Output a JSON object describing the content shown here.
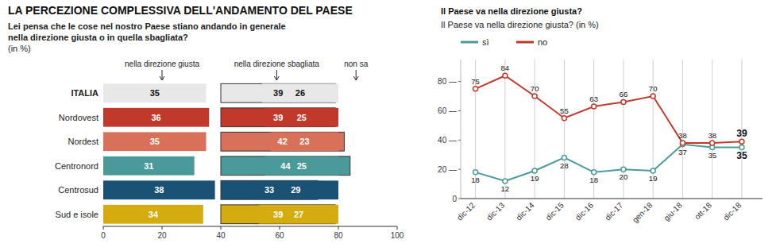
{
  "chart_data": [
    {
      "type": "bar",
      "orientation": "horizontal",
      "stacked": false,
      "data_labels": true,
      "title": "LA PERCEZIONE COMPLESSIVA DELL'ANDAMENTO DEL PAESE",
      "subtitle": "Lei pensa che le cose nel nostro Paese stiano andando in generale\nnella direzione giusta o in quella sbagliata?",
      "annotations": [
        "(in %)"
      ],
      "categories": [
        "ITALIA",
        "Nordovest",
        "Nordest",
        "Centronord",
        "Centrosud",
        "Sud e isole"
      ],
      "series": [
        {
          "name": "nella direzione giusta",
          "values": [
            35,
            36,
            35,
            31,
            38,
            34
          ],
          "colors": [
            "#e8e8e8",
            "#c0392b",
            "#d9715a",
            "#4a9a9a",
            "#1a5276",
            "#d4ac0d"
          ]
        },
        {
          "name": "nella direzione sbagliata",
          "values": [
            39,
            39,
            42,
            44,
            33,
            39
          ],
          "colors": [
            "#e8e8e8",
            "#c0392b",
            "#d9715a",
            "#4a9a9a",
            "#1a5276",
            "#d4ac0d"
          ]
        },
        {
          "name": "non sa",
          "values": [
            26,
            25,
            23,
            25,
            29,
            27
          ],
          "colors": [
            "#e8e8e8",
            "#c0392b",
            "#d9715a",
            "#4a9a9a",
            "#1a5276",
            "#d4ac0d"
          ]
        }
      ],
      "xlim": [
        0,
        100
      ],
      "xticks": [
        0,
        20,
        40,
        60,
        80,
        100
      ]
    },
    {
      "type": "line",
      "data_labels": true,
      "grid": true,
      "legend": "upper left",
      "marker": "circle",
      "title": "Il Paese va nella direzione giusta?",
      "subtitle": "Il Paese va nella direzione giusta? (in %)",
      "categories": [
        "dic-12",
        "dic-13",
        "dic-14",
        "dic-15",
        "dic-16",
        "dic-17",
        "gen-18",
        "giu-18",
        "ott-18",
        "dic-18"
      ],
      "series": [
        {
          "name": "sì",
          "color": "#4a9a9a",
          "values": [
            18,
            12,
            19,
            28,
            18,
            20,
            19,
            37,
            35,
            35
          ]
        },
        {
          "name": "no",
          "color": "#c0392b",
          "values": [
            75,
            84,
            70,
            55,
            63,
            66,
            70,
            38,
            38,
            39
          ]
        }
      ],
      "ylim": [
        0,
        95
      ],
      "yticks": [
        0,
        {
          "value": 20,
          "label": "20 —"
        },
        {
          "value": 40,
          "label": "40 —"
        },
        {
          "value": 60,
          "label": "60 —"
        },
        {
          "value": 80,
          "label": "80 —"
        }
      ]
    }
  ]
}
